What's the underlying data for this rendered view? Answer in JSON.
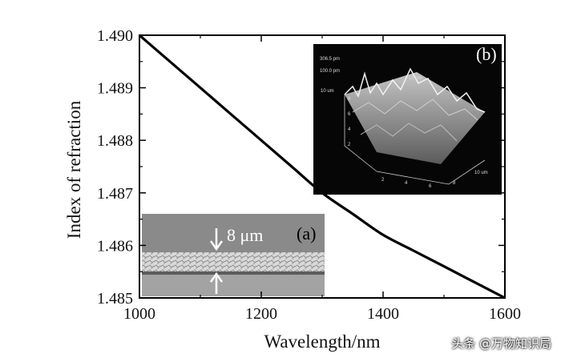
{
  "chart_data": {
    "type": "line",
    "title": "",
    "xlabel": "Wavelength/nm",
    "ylabel": "Index of refraction",
    "xlim": [
      1000,
      1600
    ],
    "ylim": [
      1.485,
      1.49
    ],
    "xticks": [
      1000,
      1200,
      1400,
      1600
    ],
    "xtick_labels": [
      "1000",
      "1200",
      "1400",
      "1600"
    ],
    "yticks": [
      1.485,
      1.486,
      1.487,
      1.488,
      1.489,
      1.49
    ],
    "ytick_labels": [
      "1.485",
      "1.486",
      "1.487",
      "1.488",
      "1.489",
      "1.490"
    ],
    "grid": false,
    "series": [
      {
        "name": "Index of refraction",
        "x": [
          1000,
          1050,
          1100,
          1150,
          1200,
          1250,
          1300,
          1350,
          1400,
          1450,
          1500,
          1550,
          1600
        ],
        "y": [
          1.49,
          1.4895,
          1.489,
          1.4885,
          1.488,
          1.4875,
          1.487,
          1.4866,
          1.4862,
          1.4859,
          1.4856,
          1.4853,
          1.485
        ]
      }
    ],
    "insets": [
      {
        "label": "(a)",
        "annotation": "8 μm",
        "description": "cross-section micrograph"
      },
      {
        "label": "(b)",
        "description": "3D AFM surface",
        "scale_texts": [
          "306.5 pm",
          "100.0 pm",
          "10 um",
          "10 um",
          "10 um"
        ],
        "axis_ticks": [
          "2",
          "4",
          "6",
          "8",
          "2",
          "4",
          "6",
          "8"
        ]
      }
    ]
  },
  "watermark": "头条 @万物知识局"
}
